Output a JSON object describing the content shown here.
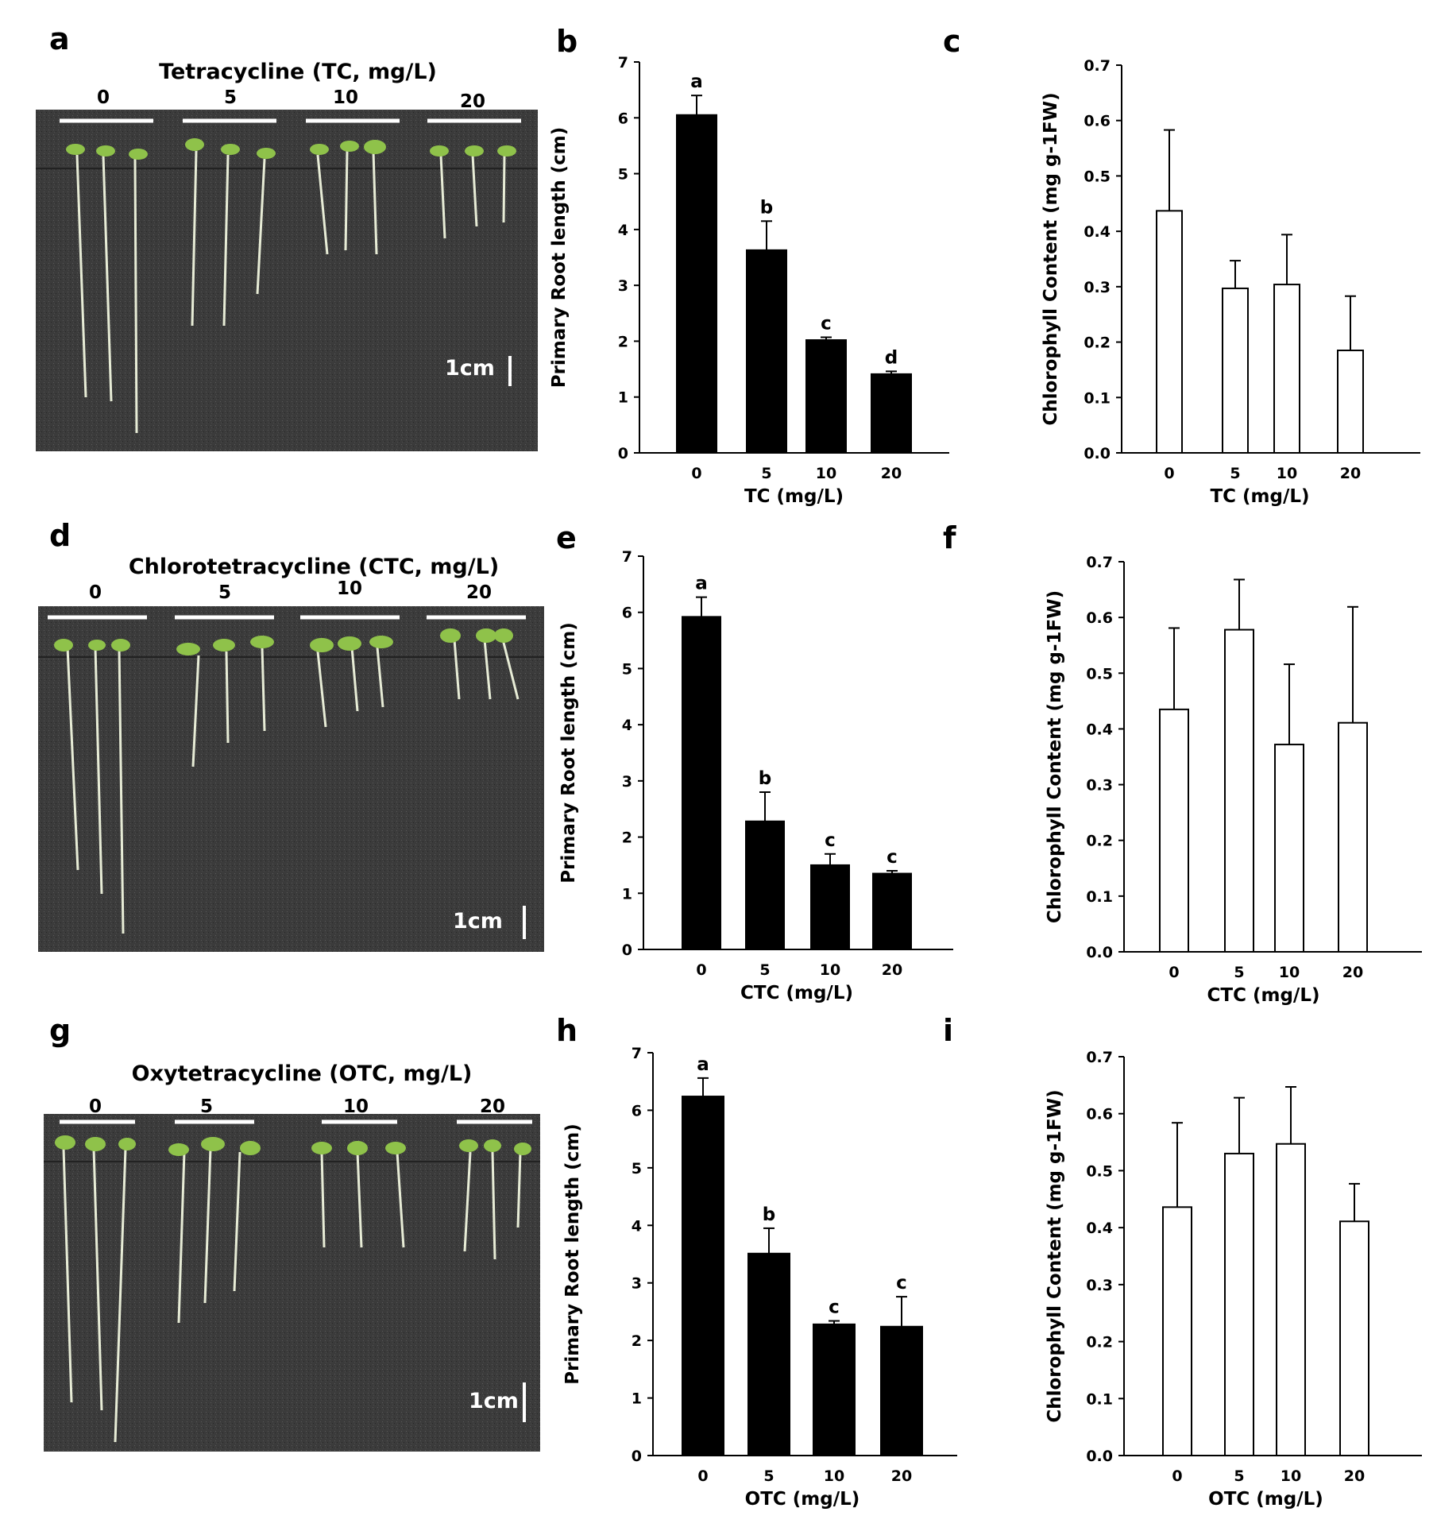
{
  "panels": [
    {
      "label": "a",
      "type": "photo",
      "title": "Tetracycline (TC, mg/L)",
      "concentrations": [
        "0",
        "5",
        "10",
        "20"
      ],
      "scale_bar": "1cm",
      "colors": {
        "background": "#3a3a3a",
        "seedling": "#e8ecd8",
        "cotyledon": "#8fc24a"
      }
    },
    {
      "label": "d",
      "type": "photo",
      "title": "Chlorotetracycline (CTC, mg/L)",
      "concentrations": [
        "0",
        "5",
        "10",
        "20"
      ],
      "scale_bar": "1cm",
      "colors": {
        "background": "#3a3a3a",
        "seedling": "#e8ecd8",
        "cotyledon": "#8fc24a"
      }
    },
    {
      "label": "g",
      "type": "photo",
      "title": "Oxytetracycline (OTC, mg/L)",
      "concentrations": [
        "0",
        "5",
        "10",
        "20"
      ],
      "scale_bar": "1cm",
      "colors": {
        "background": "#3a3a3a",
        "seedling": "#e8ecd8",
        "cotyledon": "#8fc24a"
      }
    }
  ],
  "chart_data": [
    {
      "label": "b",
      "type": "bar",
      "categories": [
        "0",
        "5",
        "10",
        "20"
      ],
      "values": [
        6.05,
        3.63,
        2.02,
        1.41
      ],
      "errors": [
        0.35,
        0.52,
        0.05,
        0.05
      ],
      "letters": [
        "a",
        "b",
        "c",
        "d"
      ],
      "xlabel": "TC (mg/L)",
      "ylabel": "Primary Root length (cm)",
      "ylim": [
        0,
        7
      ],
      "yticks": [
        "0",
        "1",
        "2",
        "3",
        "4",
        "5",
        "6",
        "7"
      ],
      "bar_fill": "#000000",
      "grid": false
    },
    {
      "label": "c",
      "type": "bar",
      "categories": [
        "0",
        "5",
        "10",
        "20"
      ],
      "values": [
        0.437,
        0.297,
        0.304,
        0.185
      ],
      "errors": [
        0.146,
        0.05,
        0.09,
        0.098
      ],
      "letters": [
        "",
        "",
        "",
        ""
      ],
      "xlabel": "TC (mg/L)",
      "ylabel": "Chlorophyll Content (mg g-1FW)",
      "ylim": [
        0,
        0.7
      ],
      "yticks": [
        "0.0",
        "0.1",
        "0.2",
        "0.3",
        "0.4",
        "0.5",
        "0.6",
        "0.7"
      ],
      "bar_fill": "#ffffff",
      "grid": false
    },
    {
      "label": "e",
      "type": "bar",
      "categories": [
        "0",
        "5",
        "10",
        "20"
      ],
      "values": [
        5.92,
        2.28,
        1.5,
        1.35
      ],
      "errors": [
        0.35,
        0.52,
        0.2,
        0.05
      ],
      "letters": [
        "a",
        "b",
        "c",
        "c"
      ],
      "xlabel": "CTC (mg/L)",
      "ylabel": "Primary Root length (cm)",
      "ylim": [
        0,
        7
      ],
      "yticks": [
        "0",
        "1",
        "2",
        "3",
        "4",
        "5",
        "6",
        "7"
      ],
      "bar_fill": "#000000",
      "grid": false
    },
    {
      "label": "f",
      "type": "bar",
      "categories": [
        "0",
        "5",
        "10",
        "20"
      ],
      "values": [
        0.435,
        0.578,
        0.372,
        0.411
      ],
      "errors": [
        0.146,
        0.09,
        0.144,
        0.208
      ],
      "letters": [
        "",
        "",
        "",
        ""
      ],
      "xlabel": "CTC (mg/L)",
      "ylabel": "Chlorophyll Content (mg g-1FW)",
      "ylim": [
        0,
        0.7
      ],
      "yticks": [
        "0.0",
        "0.1",
        "0.2",
        "0.3",
        "0.4",
        "0.5",
        "0.6",
        "0.7"
      ],
      "bar_fill": "#ffffff",
      "grid": false
    },
    {
      "label": "h",
      "type": "bar",
      "categories": [
        "0",
        "5",
        "10",
        "20"
      ],
      "values": [
        6.24,
        3.51,
        2.28,
        2.24
      ],
      "errors": [
        0.32,
        0.44,
        0.06,
        0.52
      ],
      "letters": [
        "a",
        "b",
        "c",
        "c"
      ],
      "xlabel": "OTC (mg/L)",
      "ylabel": "Primary Root length (cm)",
      "ylim": [
        0,
        7
      ],
      "yticks": [
        "0",
        "1",
        "2",
        "3",
        "4",
        "5",
        "6",
        "7"
      ],
      "bar_fill": "#000000",
      "grid": false
    },
    {
      "label": "i",
      "type": "bar",
      "categories": [
        "0",
        "5",
        "10",
        "20"
      ],
      "values": [
        0.436,
        0.53,
        0.547,
        0.411
      ],
      "errors": [
        0.148,
        0.098,
        0.1,
        0.066
      ],
      "letters": [
        "",
        "",
        "",
        ""
      ],
      "xlabel": "OTC (mg/L)",
      "ylabel": "Chlorophyll Content (mg g-1FW)",
      "ylim": [
        0,
        0.7
      ],
      "yticks": [
        "0.0",
        "0.1",
        "0.2",
        "0.3",
        "0.4",
        "0.5",
        "0.6",
        "0.7"
      ],
      "bar_fill": "#ffffff",
      "grid": false
    }
  ]
}
